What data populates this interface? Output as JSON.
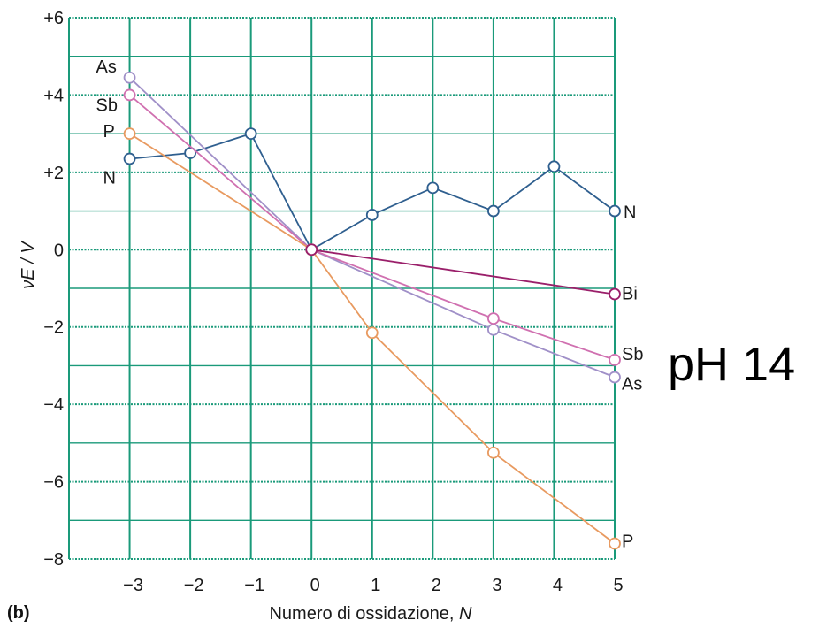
{
  "chart_data": {
    "type": "line",
    "panel_label": "(b)",
    "annotation": "pH 14",
    "xlabel": "Numero di ossidazione, ",
    "xlabel_var": "N",
    "ylabel": "νE / V",
    "xlim": [
      -4,
      5
    ],
    "ylim": [
      -8,
      6
    ],
    "xticks": [
      "−3",
      "−2",
      "−1",
      "0",
      "1",
      "2",
      "3",
      "4",
      "5"
    ],
    "yticks": [
      "−8",
      "−6",
      "−4",
      "−2",
      "0",
      "+2",
      "+4",
      "+6"
    ],
    "grid": true,
    "grid_color": "#1a9a7a",
    "series": [
      {
        "name": "N",
        "color": "#2f5f8f",
        "points": [
          [
            -3,
            2.35
          ],
          [
            -2,
            2.5
          ],
          [
            -1,
            3.0
          ],
          [
            0,
            0
          ],
          [
            1,
            0.9
          ],
          [
            2,
            1.6
          ],
          [
            3,
            1.0
          ],
          [
            4,
            2.15
          ],
          [
            5,
            1.0
          ]
        ],
        "labels": [
          {
            "text": "N",
            "at": "start",
            "dx": -30,
            "dy": 28
          },
          {
            "text": "N",
            "at": "end",
            "dx": 10,
            "dy": 8
          }
        ]
      },
      {
        "name": "As",
        "color": "#a090c8",
        "points": [
          [
            -3,
            4.45
          ],
          [
            0,
            0
          ],
          [
            3,
            -2.07
          ],
          [
            5,
            -3.3
          ]
        ],
        "labels": [
          {
            "text": "As",
            "at": "start",
            "dx": -38,
            "dy": -6
          },
          {
            "text": "As",
            "at": "end",
            "dx": 8,
            "dy": 14
          }
        ]
      },
      {
        "name": "Sb",
        "color": "#d070b0",
        "points": [
          [
            -3,
            4.0
          ],
          [
            0,
            0
          ],
          [
            3,
            -1.78
          ],
          [
            5,
            -2.85
          ]
        ],
        "labels": [
          {
            "text": "Sb",
            "at": "start",
            "dx": -38,
            "dy": 18
          },
          {
            "text": "Sb",
            "at": "end",
            "dx": 8,
            "dy": 0
          }
        ]
      },
      {
        "name": "P",
        "color": "#e89a60",
        "points": [
          [
            -3,
            3.0
          ],
          [
            0,
            0
          ],
          [
            1,
            -2.15
          ],
          [
            3,
            -5.25
          ],
          [
            5,
            -7.6
          ]
        ],
        "labels": [
          {
            "text": "P",
            "at": "start",
            "dx": -30,
            "dy": 4
          },
          {
            "text": "P",
            "at": "end",
            "dx": 8,
            "dy": 4
          }
        ]
      },
      {
        "name": "Bi",
        "color": "#9a1f6a",
        "points": [
          [
            0,
            0
          ],
          [
            5,
            -1.15
          ]
        ],
        "labels": [
          {
            "text": "Bi",
            "at": "end",
            "dx": 8,
            "dy": 6
          }
        ]
      }
    ]
  }
}
